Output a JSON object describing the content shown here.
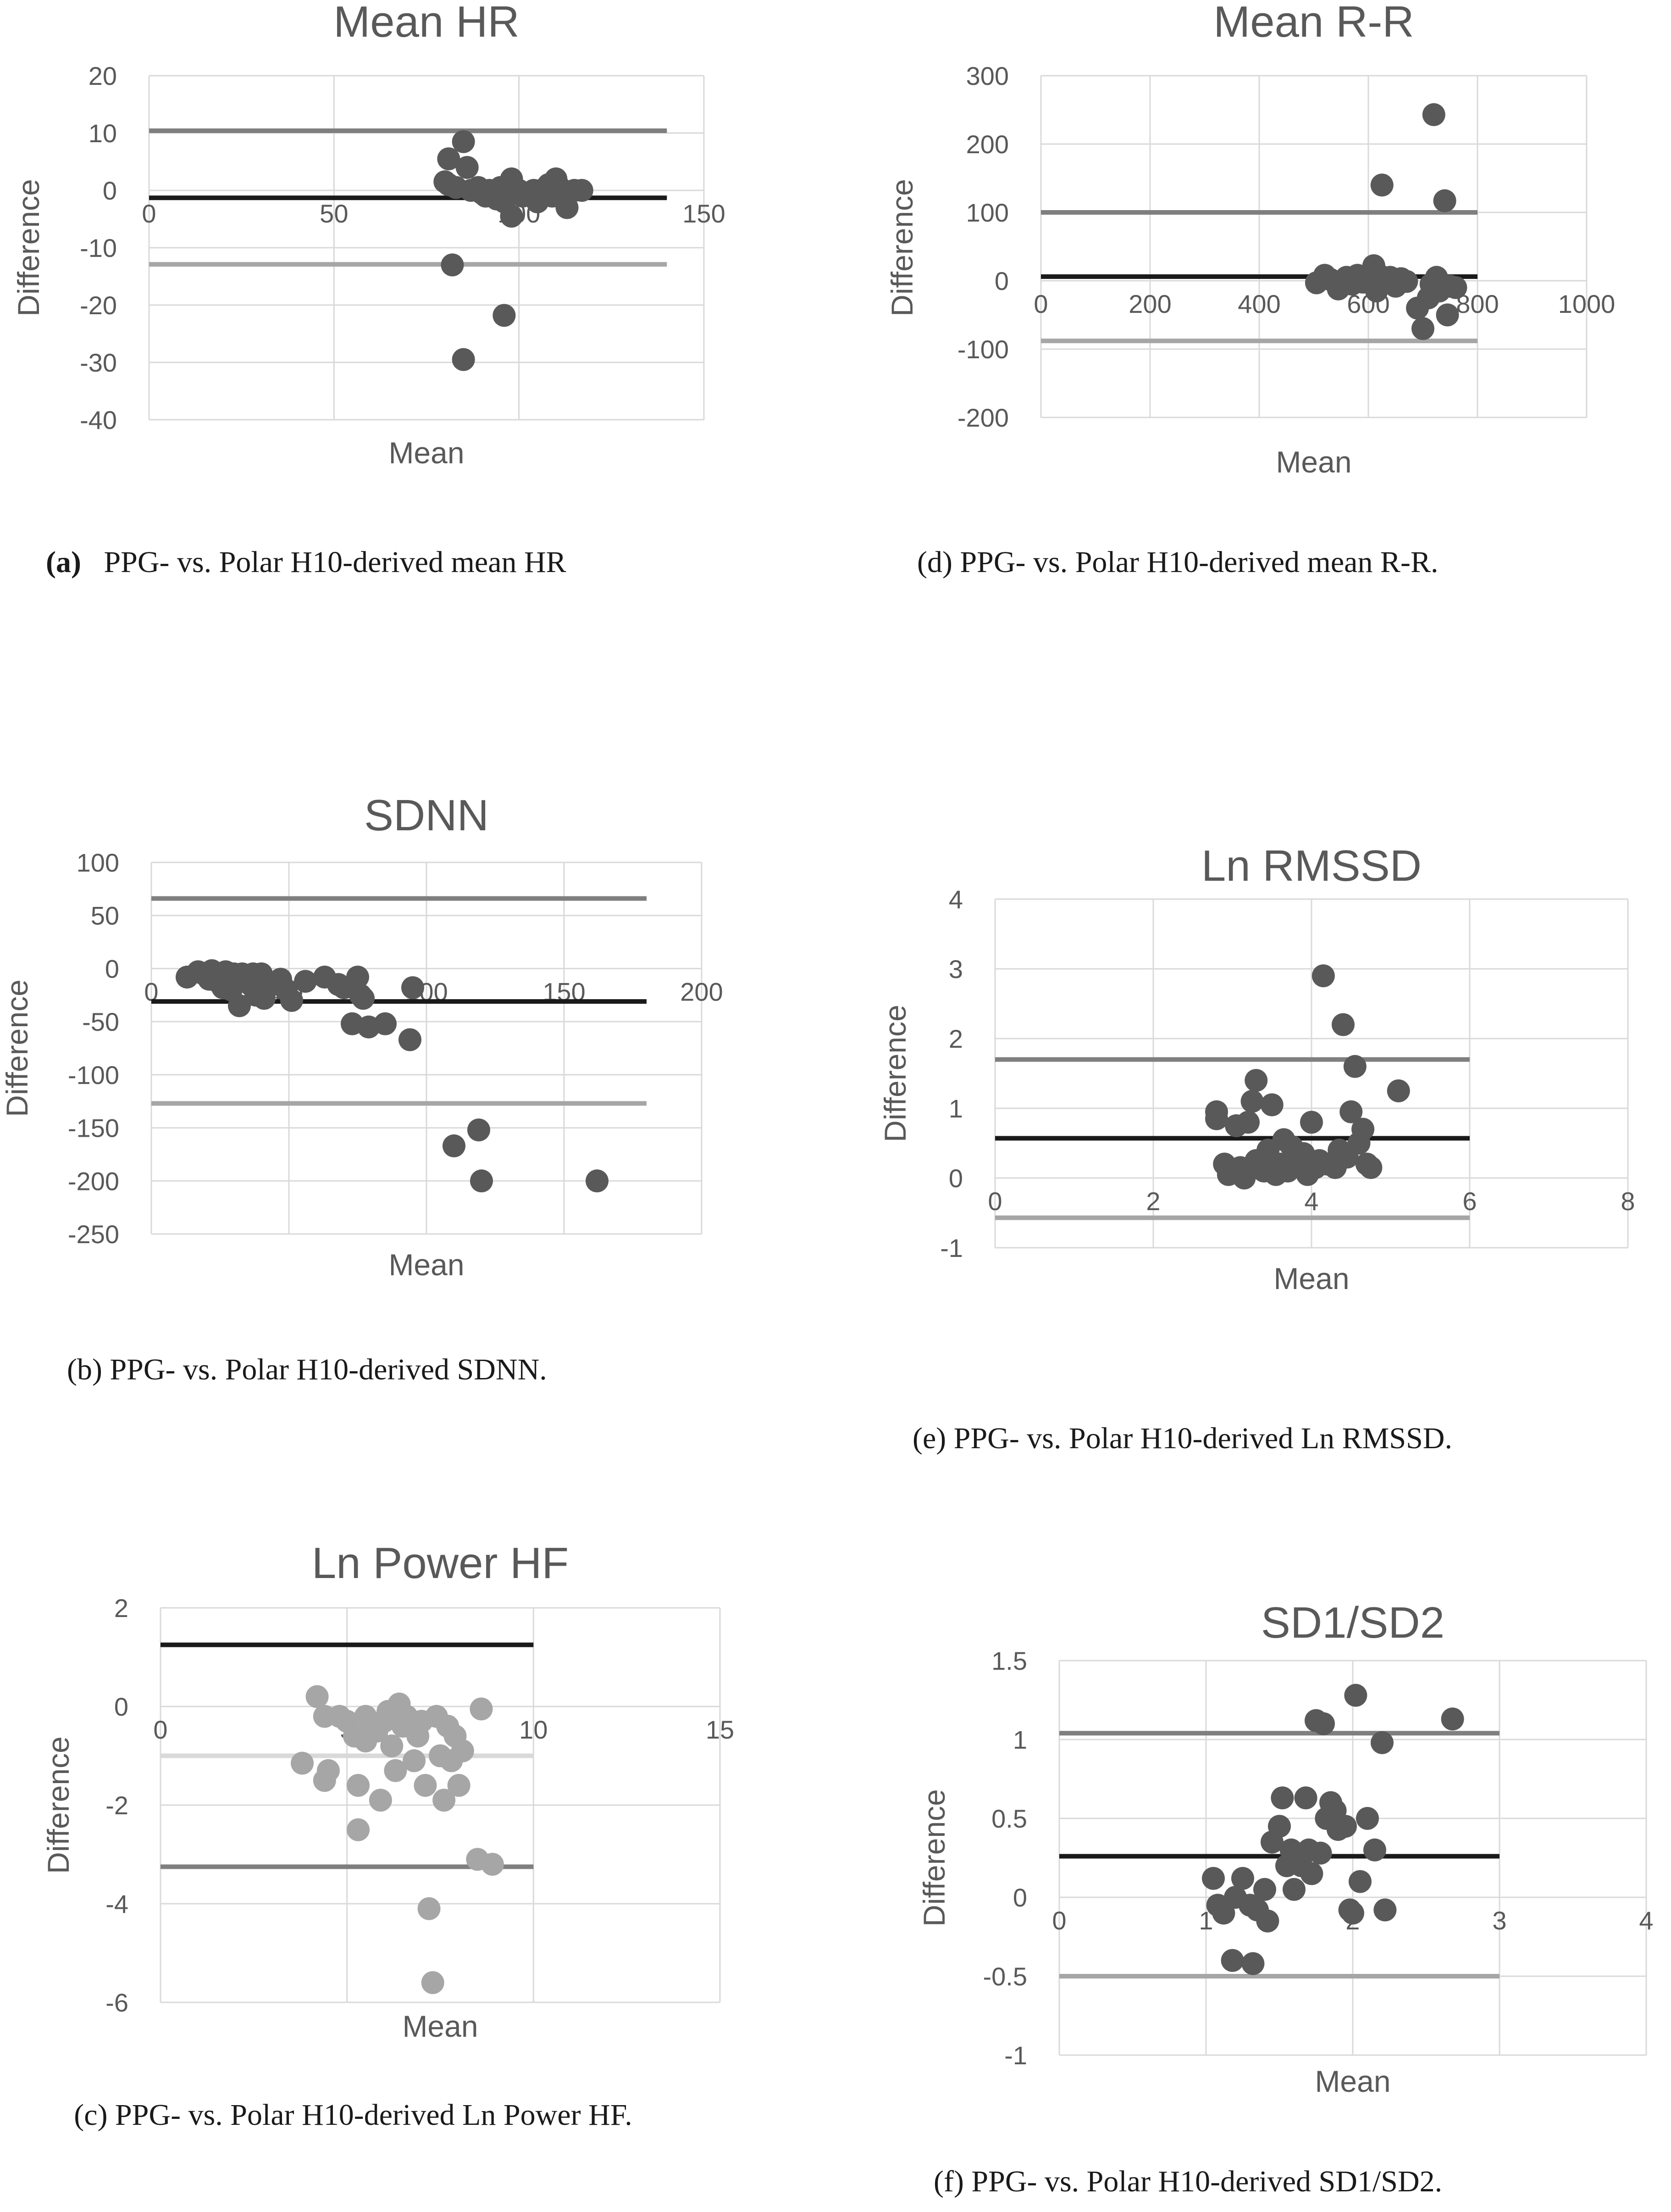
{
  "chart_data": [
    {
      "type": "scatter",
      "title": "Mean HR",
      "xlabel": "Mean",
      "ylabel": "Difference",
      "xlim": [
        0,
        150
      ],
      "ylim": [
        -40,
        20
      ],
      "xticks": [
        "0",
        "50",
        "100",
        "150"
      ],
      "yticks": [
        "20",
        "10",
        "0",
        "-10",
        "-20",
        "-30",
        "-40"
      ],
      "grid": true,
      "lines": [
        {
          "name": "upper limit",
          "y": 10.4,
          "x": [
            0,
            140
          ],
          "color": "#7f7f7f"
        },
        {
          "name": "mean difference",
          "y": -1.3,
          "x": [
            0,
            140
          ],
          "color": "#1a1a1a"
        },
        {
          "name": "lower limit",
          "y": -12.9,
          "x": [
            0,
            140
          ],
          "color": "#a6a6a6"
        }
      ],
      "points_color": "#595959",
      "points": [
        [
          80,
          1.5
        ],
        [
          81,
          5.5
        ],
        [
          81,
          1
        ],
        [
          82,
          -13
        ],
        [
          83,
          0.5
        ],
        [
          85,
          8.5
        ],
        [
          86,
          4
        ],
        [
          85,
          -29.5
        ],
        [
          87,
          0
        ],
        [
          89,
          0.5
        ],
        [
          90,
          -0.5
        ],
        [
          91,
          -1
        ],
        [
          92,
          0
        ],
        [
          93,
          -0.5
        ],
        [
          94,
          -1.5
        ],
        [
          95,
          0.5
        ],
        [
          96,
          -0.5
        ],
        [
          96,
          -2
        ],
        [
          97,
          -1
        ],
        [
          98,
          2
        ],
        [
          99,
          -0.5
        ],
        [
          98,
          -4.5
        ],
        [
          100,
          0
        ],
        [
          101,
          -1
        ],
        [
          103,
          -0.5
        ],
        [
          104,
          0
        ],
        [
          105,
          -2
        ],
        [
          106,
          0
        ],
        [
          107,
          -0.5
        ],
        [
          108,
          1
        ],
        [
          109,
          -1
        ],
        [
          110,
          2
        ],
        [
          111,
          0.5
        ],
        [
          112,
          -1.5
        ],
        [
          113,
          -3
        ],
        [
          115,
          0
        ],
        [
          117,
          0
        ],
        [
          96,
          -21.8
        ]
      ]
    },
    {
      "type": "scatter",
      "title": "Mean R-R",
      "xlabel": "Mean",
      "ylabel": "Difference",
      "xlim": [
        0,
        1000
      ],
      "ylim": [
        -200,
        300
      ],
      "xticks": [
        "0",
        "200",
        "400",
        "600",
        "800",
        "1000"
      ],
      "yticks": [
        "300",
        "200",
        "100",
        "0",
        "-100",
        "-200"
      ],
      "grid": true,
      "lines": [
        {
          "name": "upper limit",
          "y": 100,
          "x": [
            0,
            800
          ],
          "color": "#7f7f7f"
        },
        {
          "name": "mean difference",
          "y": 6,
          "x": [
            0,
            800
          ],
          "color": "#1a1a1a"
        },
        {
          "name": "lower limit",
          "y": -88,
          "x": [
            0,
            800
          ],
          "color": "#a6a6a6"
        }
      ],
      "points_color": "#595959",
      "points": [
        [
          505,
          -3
        ],
        [
          520,
          8
        ],
        [
          530,
          2
        ],
        [
          545,
          -12
        ],
        [
          560,
          5
        ],
        [
          570,
          -5
        ],
        [
          580,
          8
        ],
        [
          590,
          -2
        ],
        [
          600,
          5
        ],
        [
          610,
          22
        ],
        [
          615,
          -15
        ],
        [
          620,
          8
        ],
        [
          625,
          140
        ],
        [
          630,
          -3
        ],
        [
          640,
          5
        ],
        [
          650,
          -8
        ],
        [
          660,
          3
        ],
        [
          670,
          -1
        ],
        [
          690,
          -40
        ],
        [
          700,
          -70
        ],
        [
          710,
          -25
        ],
        [
          715,
          -5
        ],
        [
          720,
          243
        ],
        [
          725,
          5
        ],
        [
          730,
          -15
        ],
        [
          740,
          117
        ],
        [
          745,
          -50
        ],
        [
          750,
          -8
        ],
        [
          760,
          -10
        ]
      ]
    },
    {
      "type": "scatter",
      "title": "SDNN",
      "xlabel": "Mean",
      "ylabel": "Difference",
      "xlim": [
        0,
        200
      ],
      "ylim": [
        -250,
        100
      ],
      "xticks": [
        "0",
        "50",
        "100",
        "150",
        "200"
      ],
      "yticks": [
        "100",
        "50",
        "0",
        "-50",
        "-100",
        "-150",
        "-200",
        "-250"
      ],
      "grid": true,
      "lines": [
        {
          "name": "upper limit",
          "y": 66,
          "x": [
            0,
            180
          ],
          "color": "#7f7f7f"
        },
        {
          "name": "mean difference",
          "y": -31,
          "x": [
            0,
            180
          ],
          "color": "#1a1a1a"
        },
        {
          "name": "lower limit",
          "y": -127,
          "x": [
            0,
            180
          ],
          "color": "#a6a6a6"
        }
      ],
      "points_color": "#595959",
      "points": [
        [
          13,
          -8
        ],
        [
          17,
          -3
        ],
        [
          19,
          -5
        ],
        [
          21,
          -10
        ],
        [
          22,
          -2
        ],
        [
          24,
          -12
        ],
        [
          25,
          -5
        ],
        [
          26,
          -18
        ],
        [
          27,
          -3
        ],
        [
          28,
          -8
        ],
        [
          29,
          -20
        ],
        [
          30,
          -5
        ],
        [
          31,
          -12
        ],
        [
          32,
          -35
        ],
        [
          33,
          -5
        ],
        [
          35,
          -10
        ],
        [
          36,
          -15
        ],
        [
          37,
          -5
        ],
        [
          38,
          -25
        ],
        [
          39,
          -20
        ],
        [
          40,
          -5
        ],
        [
          41,
          -28
        ],
        [
          44,
          -15
        ],
        [
          47,
          -10
        ],
        [
          49,
          -20
        ],
        [
          51,
          -30
        ],
        [
          56,
          -12
        ],
        [
          63,
          -8
        ],
        [
          68,
          -15
        ],
        [
          70,
          -18
        ],
        [
          73,
          -52
        ],
        [
          75,
          -8
        ],
        [
          76,
          -25
        ],
        [
          77,
          -28
        ],
        [
          79,
          -55
        ],
        [
          85,
          -52
        ],
        [
          94,
          -67
        ],
        [
          95,
          -18
        ],
        [
          110,
          -167
        ],
        [
          119,
          -152
        ],
        [
          120,
          -200
        ],
        [
          162,
          -200
        ]
      ]
    },
    {
      "type": "scatter",
      "title": "Ln RMSSD",
      "xlabel": "Mean",
      "ylabel": "Difference",
      "xlim": [
        0,
        8
      ],
      "ylim": [
        -1,
        4
      ],
      "xticks": [
        "0",
        "2",
        "4",
        "6",
        "8"
      ],
      "yticks": [
        "4",
        "3",
        "2",
        "1",
        "0",
        "-1"
      ],
      "grid": true,
      "lines": [
        {
          "name": "upper limit",
          "y": 1.7,
          "x": [
            0,
            6
          ],
          "color": "#7f7f7f"
        },
        {
          "name": "mean difference",
          "y": 0.57,
          "x": [
            0,
            6
          ],
          "color": "#1a1a1a"
        },
        {
          "name": "lower limit",
          "y": -0.57,
          "x": [
            0,
            6
          ],
          "color": "#a6a6a6"
        }
      ],
      "points_color": "#595959",
      "points": [
        [
          2.8,
          0.95
        ],
        [
          2.8,
          0.85
        ],
        [
          2.9,
          0.2
        ],
        [
          2.95,
          0.05
        ],
        [
          3.05,
          0.75
        ],
        [
          3.1,
          0.15
        ],
        [
          3.15,
          0.0
        ],
        [
          3.2,
          0.8
        ],
        [
          3.25,
          1.1
        ],
        [
          3.3,
          1.4
        ],
        [
          3.3,
          0.25
        ],
        [
          3.4,
          0.1
        ],
        [
          3.45,
          0.4
        ],
        [
          3.5,
          1.05
        ],
        [
          3.55,
          0.05
        ],
        [
          3.6,
          0.2
        ],
        [
          3.65,
          0.55
        ],
        [
          3.7,
          0.1
        ],
        [
          3.75,
          0.45
        ],
        [
          3.8,
          0.3
        ],
        [
          3.85,
          0.2
        ],
        [
          3.9,
          0.35
        ],
        [
          3.95,
          0.05
        ],
        [
          4.0,
          0.8
        ],
        [
          4.05,
          0.15
        ],
        [
          4.1,
          0.25
        ],
        [
          4.15,
          2.9
        ],
        [
          4.2,
          0.2
        ],
        [
          4.3,
          0.15
        ],
        [
          4.35,
          0.4
        ],
        [
          4.4,
          2.2
        ],
        [
          4.45,
          0.3
        ],
        [
          4.5,
          0.95
        ],
        [
          4.55,
          1.6
        ],
        [
          4.6,
          0.5
        ],
        [
          4.65,
          0.7
        ],
        [
          4.7,
          0.2
        ],
        [
          4.75,
          0.15
        ],
        [
          5.1,
          1.25
        ]
      ]
    },
    {
      "type": "scatter",
      "title": "Ln Power HF",
      "xlabel": "Mean",
      "ylabel": "Difference",
      "xlim": [
        0,
        15
      ],
      "ylim": [
        -6,
        2
      ],
      "xticks": [
        "0",
        "5",
        "10",
        "15"
      ],
      "yticks": [
        "2",
        "0",
        "-2",
        "-4",
        "-6"
      ],
      "grid": true,
      "lines": [
        {
          "name": "upper limit",
          "y": 1.25,
          "x": [
            0,
            10
          ],
          "color": "#1a1a1a"
        },
        {
          "name": "mean difference",
          "y": -1.0,
          "x": [
            0,
            10
          ],
          "color": "#d9d9d9"
        },
        {
          "name": "lower limit",
          "y": -3.25,
          "x": [
            0,
            10
          ],
          "color": "#7f7f7f"
        }
      ],
      "points_color": "#a6a6a6",
      "points": [
        [
          3.8,
          -1.15
        ],
        [
          4.2,
          0.2
        ],
        [
          4.4,
          -0.2
        ],
        [
          4.4,
          -1.5
        ],
        [
          4.5,
          -1.3
        ],
        [
          4.8,
          -0.2
        ],
        [
          5.0,
          -0.3
        ],
        [
          5.2,
          -0.6
        ],
        [
          5.3,
          -1.6
        ],
        [
          5.3,
          -2.5
        ],
        [
          5.5,
          -0.2
        ],
        [
          5.5,
          -0.7
        ],
        [
          5.6,
          -0.3
        ],
        [
          5.8,
          -0.5
        ],
        [
          5.9,
          -1.9
        ],
        [
          6.0,
          -0.3
        ],
        [
          6.1,
          -0.1
        ],
        [
          6.2,
          -0.8
        ],
        [
          6.3,
          -1.3
        ],
        [
          6.4,
          0.05
        ],
        [
          6.5,
          -0.4
        ],
        [
          6.6,
          -0.2
        ],
        [
          6.8,
          -1.1
        ],
        [
          6.9,
          -0.6
        ],
        [
          7.0,
          -0.3
        ],
        [
          7.1,
          -1.6
        ],
        [
          7.2,
          -4.1
        ],
        [
          7.3,
          -5.6
        ],
        [
          7.4,
          -0.2
        ],
        [
          7.5,
          -1.0
        ],
        [
          7.6,
          -1.9
        ],
        [
          7.7,
          -0.4
        ],
        [
          7.8,
          -1.1
        ],
        [
          7.9,
          -0.6
        ],
        [
          8.0,
          -1.6
        ],
        [
          8.1,
          -0.9
        ],
        [
          8.5,
          -3.1
        ],
        [
          8.9,
          -3.2
        ],
        [
          8.6,
          -0.05
        ]
      ]
    },
    {
      "type": "scatter",
      "title": "SD1/SD2",
      "xlabel": "Mean",
      "ylabel": "Difference",
      "xlim": [
        0,
        4
      ],
      "ylim": [
        -1,
        1.5
      ],
      "xticks": [
        "0",
        "1",
        "2",
        "3",
        "4"
      ],
      "yticks": [
        "1.5",
        "1",
        "0.5",
        "0",
        "-0.5",
        "-1"
      ],
      "grid": true,
      "lines": [
        {
          "name": "upper limit",
          "y": 1.04,
          "x": [
            0,
            3
          ],
          "color": "#7f7f7f"
        },
        {
          "name": "mean difference",
          "y": 0.26,
          "x": [
            0,
            3
          ],
          "color": "#1a1a1a"
        },
        {
          "name": "lower limit",
          "y": -0.5,
          "x": [
            0,
            3
          ],
          "color": "#a6a6a6"
        }
      ],
      "points_color": "#595959",
      "points": [
        [
          1.05,
          0.12
        ],
        [
          1.08,
          -0.05
        ],
        [
          1.12,
          -0.1
        ],
        [
          1.18,
          -0.4
        ],
        [
          1.2,
          0.0
        ],
        [
          1.25,
          0.12
        ],
        [
          1.3,
          -0.05
        ],
        [
          1.32,
          -0.42
        ],
        [
          1.35,
          -0.08
        ],
        [
          1.4,
          0.05
        ],
        [
          1.42,
          -0.15
        ],
        [
          1.45,
          0.35
        ],
        [
          1.5,
          0.45
        ],
        [
          1.52,
          0.63
        ],
        [
          1.55,
          0.2
        ],
        [
          1.58,
          0.3
        ],
        [
          1.6,
          0.05
        ],
        [
          1.62,
          0.25
        ],
        [
          1.65,
          0.2
        ],
        [
          1.68,
          0.63
        ],
        [
          1.7,
          0.3
        ],
        [
          1.72,
          0.15
        ],
        [
          1.75,
          1.12
        ],
        [
          1.78,
          0.28
        ],
        [
          1.8,
          1.1
        ],
        [
          1.82,
          0.5
        ],
        [
          1.85,
          0.6
        ],
        [
          1.88,
          0.55
        ],
        [
          1.9,
          0.43
        ],
        [
          1.95,
          0.45
        ],
        [
          1.98,
          -0.08
        ],
        [
          2.0,
          -0.1
        ],
        [
          2.02,
          1.28
        ],
        [
          2.05,
          0.1
        ],
        [
          2.1,
          0.5
        ],
        [
          2.15,
          0.3
        ],
        [
          2.2,
          0.98
        ],
        [
          2.22,
          -0.08
        ],
        [
          2.68,
          1.13
        ]
      ]
    }
  ],
  "captions": {
    "a_label": "(a)",
    "a_text": "PPG- vs. Polar H10-derived mean HR",
    "b": "(b) PPG- vs. Polar H10-derived SDNN.",
    "c": "(c) PPG- vs. Polar H10-derived Ln Power HF.",
    "d": "(d) PPG- vs. Polar H10-derived mean R-R.",
    "e": "(e) PPG- vs. Polar H10-derived Ln RMSSD.",
    "f": "(f) PPG- vs. Polar H10-derived SD1/SD2."
  }
}
